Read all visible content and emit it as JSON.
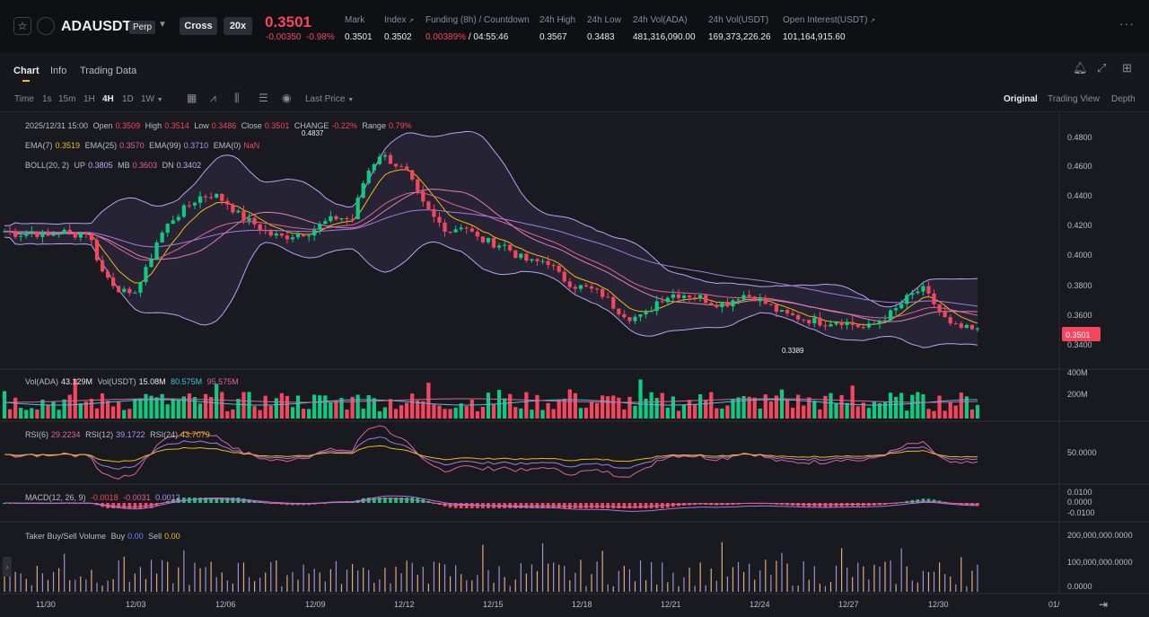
{
  "header": {
    "symbol": "ADAUSDT",
    "contract_type": "Perp",
    "margin_mode": "Cross",
    "leverage": "20x",
    "last_price": "0.3501",
    "change_abs": "-0.00350",
    "change_pct": "-0.98%",
    "stats": [
      {
        "label": "Mark",
        "value": "0.3501"
      },
      {
        "label": "Index",
        "value": "0.3502"
      },
      {
        "label": "Funding (8h) / Countdown",
        "value_a": "0.00389%",
        "value_b": " / 04:55:46"
      },
      {
        "label": "24h High",
        "value": "0.3567"
      },
      {
        "label": "24h Low",
        "value": "0.3483"
      },
      {
        "label": "24h Vol(ADA)",
        "value": "481,316,090.00"
      },
      {
        "label": "24h Vol(USDT)",
        "value": "169,373,226.26"
      },
      {
        "label": "Open Interest(USDT)",
        "value": "101,164,915.60"
      }
    ]
  },
  "tabs": [
    "Chart",
    "Info",
    "Trading Data"
  ],
  "toolbar": {
    "timeframes": [
      "Time",
      "1s",
      "15m",
      "1H",
      "4H",
      "1D",
      "1W"
    ],
    "active_timeframe": "4H",
    "price_type": "Last Price",
    "views": [
      "Original",
      "Trading View",
      "Depth"
    ],
    "active_view": "Original"
  },
  "legend": {
    "ohlc": {
      "date": "2025/12/31 15:00",
      "open_lbl": "Open",
      "open": "0.3509",
      "high_lbl": "High",
      "high": "0.3514",
      "low_lbl": "Low",
      "low": "0.3486",
      "close_lbl": "Close",
      "close": "0.3501",
      "change_lbl": "CHANGE",
      "change": "-0.22%",
      "range_lbl": "Range",
      "range": "0.79%"
    },
    "ema": {
      "ema7_lbl": "EMA(7)",
      "ema7": "0.3519",
      "ema25_lbl": "EMA(25)",
      "ema25": "0.3570",
      "ema99_lbl": "EMA(99)",
      "ema99": "0.3710",
      "ema0_lbl": "EMA(0)",
      "ema0": "NaN"
    },
    "boll": {
      "lbl": "BOLL(20, 2)",
      "up_lbl": "UP",
      "up": "0.3805",
      "mb_lbl": "MB",
      "mb": "0.3603",
      "dn_lbl": "DN",
      "dn": "0.3402"
    },
    "vol": {
      "ada_lbl": "Vol(ADA)",
      "ada": "43.129M",
      "usdt_lbl": "Vol(USDT)",
      "usdt": "15.08M",
      "ma1": "80.575M",
      "ma2": "95.575M"
    },
    "rsi": {
      "r6_lbl": "RSI(6)",
      "r6": "29.2234",
      "r12_lbl": "RSI(12)",
      "r12": "39.1722",
      "r24_lbl": "RSI(24)",
      "r24": "43.7079"
    },
    "macd": {
      "lbl": "MACD(12, 26, 9)",
      "v1": "-0.0018",
      "v2": "-0.0031",
      "v3": "0.0012"
    },
    "taker": {
      "lbl": "Taker Buy/Sell Volume",
      "buy_lbl": "Buy",
      "buy": "0.00",
      "sell_lbl": "Sell",
      "sell": "0.00"
    }
  },
  "chart_data": {
    "type": "candlestick",
    "price_axis": [
      "0.4800",
      "0.4600",
      "0.4400",
      "0.4200",
      "0.4000",
      "0.3800",
      "0.3600",
      "0.3400"
    ],
    "current_price_label": "0.3501",
    "high_marker": "0.4837",
    "low_marker": "0.3389",
    "volume_axis": [
      "400M",
      "200M"
    ],
    "rsi_axis": [
      "50.0000"
    ],
    "macd_axis": [
      "0.0100",
      "0.0000",
      "-0.0100"
    ],
    "taker_axis": [
      "200,000,000.0000",
      "100,000,000.0000",
      "0.0000"
    ],
    "date_axis": [
      "11/30",
      "12/03",
      "12/06",
      "12/09",
      "12/12",
      "12/15",
      "12/18",
      "12/21",
      "12/24",
      "12/27",
      "12/30",
      "01/"
    ],
    "price_range": [
      0.33,
      0.49
    ],
    "price_path": [
      0.42,
      0.418,
      0.42,
      0.416,
      0.42,
      0.418,
      0.42,
      0.392,
      0.382,
      0.374,
      0.388,
      0.414,
      0.428,
      0.436,
      0.444,
      0.446,
      0.44,
      0.43,
      0.425,
      0.418,
      0.416,
      0.418,
      0.42,
      0.426,
      0.43,
      0.428,
      0.46,
      0.474,
      0.468,
      0.46,
      0.44,
      0.428,
      0.42,
      0.425,
      0.415,
      0.412,
      0.41,
      0.402,
      0.398,
      0.4,
      0.388,
      0.382,
      0.38,
      0.376,
      0.366,
      0.36,
      0.36,
      0.372,
      0.376,
      0.376,
      0.374,
      0.37,
      0.37,
      0.376,
      0.374,
      0.368,
      0.362,
      0.36,
      0.358,
      0.356,
      0.358,
      0.355,
      0.352,
      0.358,
      0.364,
      0.374,
      0.38,
      0.368,
      0.354,
      0.352,
      0.3501
    ]
  }
}
